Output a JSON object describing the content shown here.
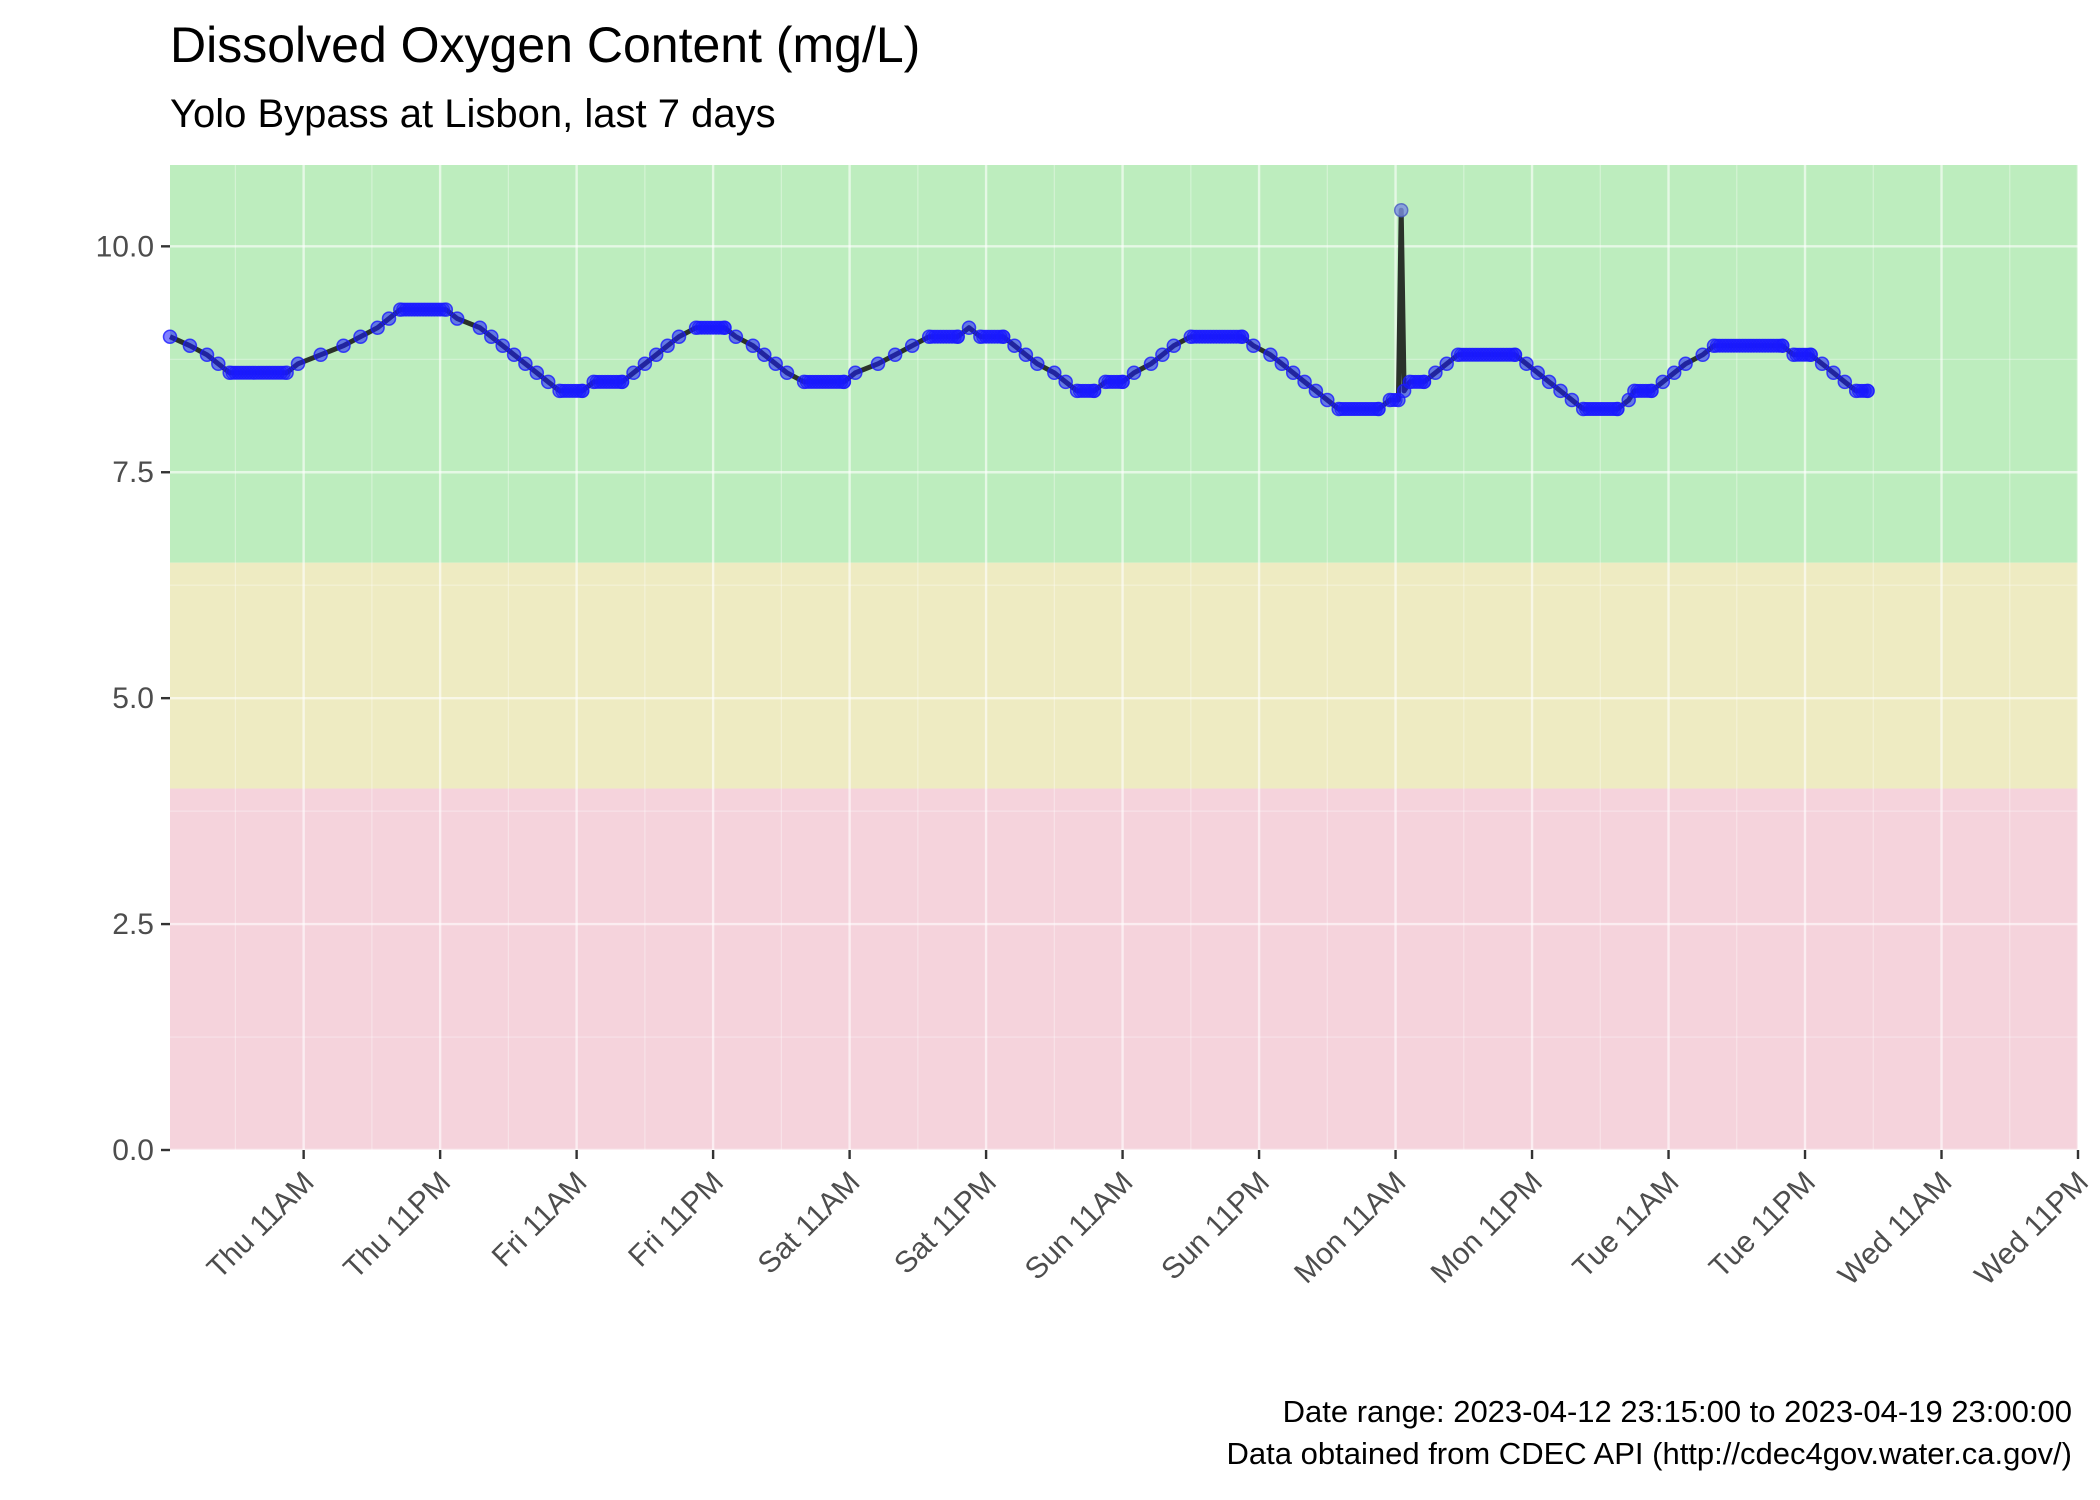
{
  "chart_data": {
    "type": "line",
    "title": "Dissolved Oxygen Content (mg/L)",
    "subtitle": "Yolo Bypass at Lisbon, last 7 days",
    "xlabel": "",
    "ylabel": "",
    "ylim": [
      0,
      10.9
    ],
    "y_ticks": [
      0.0,
      2.5,
      5.0,
      7.5,
      10.0
    ],
    "y_tick_labels": [
      "0.0",
      "2.5",
      "5.0",
      "7.5",
      "10.0"
    ],
    "x_start": "2023-04-12 23:15",
    "x_end": "2023-04-19 23:00",
    "x_axis_range": [
      "2023-04-12 23:15",
      "2023-04-19 23:00"
    ],
    "x_ticks": [
      "2023-04-13 11:00",
      "2023-04-13 23:00",
      "2023-04-14 11:00",
      "2023-04-14 23:00",
      "2023-04-15 11:00",
      "2023-04-15 23:00",
      "2023-04-16 11:00",
      "2023-04-16 23:00",
      "2023-04-17 11:00",
      "2023-04-17 23:00",
      "2023-04-18 11:00",
      "2023-04-18 23:00",
      "2023-04-19 11:00",
      "2023-04-19 23:00"
    ],
    "x_tick_labels": [
      "Thu 11AM",
      "Thu 11PM",
      "Fri 11AM",
      "Fri 11PM",
      "Sat 11AM",
      "Sat 11PM",
      "Sun 11AM",
      "Sun 11PM",
      "Mon 11AM",
      "Mon 11PM",
      "Tue 11AM",
      "Tue 11PM",
      "Wed 11AM",
      "Wed 11PM"
    ],
    "grid": true,
    "bands": [
      {
        "from": 0,
        "to": 4.0,
        "color": "#f5d3dc"
      },
      {
        "from": 4.0,
        "to": 6.5,
        "color": "#eeebc2"
      },
      {
        "from": 6.5,
        "to": 10.9,
        "color": "#bdedbe"
      }
    ],
    "line_color": "#111111",
    "point_color": "#1a1aff",
    "series": [
      {
        "points": [
          [
            "2023-04-12 23:15",
            9.0
          ],
          [
            "2023-04-13 01:00",
            8.9
          ],
          [
            "2023-04-13 02:30",
            8.8
          ],
          [
            "2023-04-13 03:30",
            8.7
          ],
          [
            "2023-04-13 04:30",
            8.6
          ],
          [
            "2023-04-13 09:30",
            8.6
          ],
          [
            "2023-04-13 10:30",
            8.7
          ],
          [
            "2023-04-13 12:30",
            8.8
          ],
          [
            "2023-04-13 14:30",
            8.9
          ],
          [
            "2023-04-13 16:00",
            9.0
          ],
          [
            "2023-04-13 17:30",
            9.1
          ],
          [
            "2023-04-13 18:30",
            9.2
          ],
          [
            "2023-04-13 19:30",
            9.3
          ],
          [
            "2023-04-13 23:30",
            9.3
          ],
          [
            "2023-04-14 00:30",
            9.2
          ],
          [
            "2023-04-14 02:30",
            9.1
          ],
          [
            "2023-04-14 03:30",
            9.0
          ],
          [
            "2023-04-14 04:30",
            8.9
          ],
          [
            "2023-04-14 05:30",
            8.8
          ],
          [
            "2023-04-14 06:30",
            8.7
          ],
          [
            "2023-04-14 07:30",
            8.6
          ],
          [
            "2023-04-14 08:30",
            8.5
          ],
          [
            "2023-04-14 09:30",
            8.4
          ],
          [
            "2023-04-14 11:30",
            8.4
          ],
          [
            "2023-04-14 12:30",
            8.5
          ],
          [
            "2023-04-14 15:00",
            8.5
          ],
          [
            "2023-04-14 16:00",
            8.6
          ],
          [
            "2023-04-14 17:00",
            8.7
          ],
          [
            "2023-04-14 18:00",
            8.8
          ],
          [
            "2023-04-14 19:00",
            8.9
          ],
          [
            "2023-04-14 20:00",
            9.0
          ],
          [
            "2023-04-14 21:30",
            9.1
          ],
          [
            "2023-04-15 00:00",
            9.1
          ],
          [
            "2023-04-15 01:00",
            9.0
          ],
          [
            "2023-04-15 02:30",
            8.9
          ],
          [
            "2023-04-15 03:30",
            8.8
          ],
          [
            "2023-04-15 04:30",
            8.7
          ],
          [
            "2023-04-15 05:30",
            8.6
          ],
          [
            "2023-04-15 07:00",
            8.5
          ],
          [
            "2023-04-15 10:30",
            8.5
          ],
          [
            "2023-04-15 11:30",
            8.6
          ],
          [
            "2023-04-15 13:30",
            8.7
          ],
          [
            "2023-04-15 15:00",
            8.8
          ],
          [
            "2023-04-15 16:30",
            8.9
          ],
          [
            "2023-04-15 18:00",
            9.0
          ],
          [
            "2023-04-15 20:30",
            9.0
          ],
          [
            "2023-04-15 21:30",
            9.1
          ],
          [
            "2023-04-15 22:30",
            9.0
          ],
          [
            "2023-04-16 00:30",
            9.0
          ],
          [
            "2023-04-16 01:30",
            8.9
          ],
          [
            "2023-04-16 02:30",
            8.8
          ],
          [
            "2023-04-16 03:30",
            8.7
          ],
          [
            "2023-04-16 05:00",
            8.6
          ],
          [
            "2023-04-16 06:00",
            8.5
          ],
          [
            "2023-04-16 07:00",
            8.4
          ],
          [
            "2023-04-16 08:30",
            8.4
          ],
          [
            "2023-04-16 09:30",
            8.5
          ],
          [
            "2023-04-16 11:00",
            8.5
          ],
          [
            "2023-04-16 12:00",
            8.6
          ],
          [
            "2023-04-16 13:30",
            8.7
          ],
          [
            "2023-04-16 14:30",
            8.8
          ],
          [
            "2023-04-16 15:30",
            8.9
          ],
          [
            "2023-04-16 17:00",
            9.0
          ],
          [
            "2023-04-16 21:30",
            9.0
          ],
          [
            "2023-04-16 22:30",
            8.9
          ],
          [
            "2023-04-17 00:00",
            8.8
          ],
          [
            "2023-04-17 01:00",
            8.7
          ],
          [
            "2023-04-17 02:00",
            8.6
          ],
          [
            "2023-04-17 03:00",
            8.5
          ],
          [
            "2023-04-17 04:00",
            8.4
          ],
          [
            "2023-04-17 05:00",
            8.3
          ],
          [
            "2023-04-17 06:00",
            8.2
          ],
          [
            "2023-04-17 09:30",
            8.2
          ],
          [
            "2023-04-17 10:30",
            8.3
          ],
          [
            "2023-04-17 11:15",
            8.3
          ],
          [
            "2023-04-17 11:30",
            10.4
          ],
          [
            "2023-04-17 11:45",
            8.4
          ],
          [
            "2023-04-17 12:15",
            8.5
          ],
          [
            "2023-04-17 13:30",
            8.5
          ],
          [
            "2023-04-17 14:30",
            8.6
          ],
          [
            "2023-04-17 15:30",
            8.7
          ],
          [
            "2023-04-17 16:30",
            8.8
          ],
          [
            "2023-04-17 21:30",
            8.8
          ],
          [
            "2023-04-17 22:30",
            8.7
          ],
          [
            "2023-04-17 23:30",
            8.6
          ],
          [
            "2023-04-18 00:30",
            8.5
          ],
          [
            "2023-04-18 01:30",
            8.4
          ],
          [
            "2023-04-18 02:30",
            8.3
          ],
          [
            "2023-04-18 03:30",
            8.2
          ],
          [
            "2023-04-18 06:30",
            8.2
          ],
          [
            "2023-04-18 07:30",
            8.3
          ],
          [
            "2023-04-18 08:00",
            8.4
          ],
          [
            "2023-04-18 09:30",
            8.4
          ],
          [
            "2023-04-18 10:30",
            8.5
          ],
          [
            "2023-04-18 11:30",
            8.6
          ],
          [
            "2023-04-18 12:30",
            8.7
          ],
          [
            "2023-04-18 14:00",
            8.8
          ],
          [
            "2023-04-18 15:00",
            8.9
          ],
          [
            "2023-04-18 21:00",
            8.9
          ],
          [
            "2023-04-18 22:00",
            8.8
          ],
          [
            "2023-04-18 23:30",
            8.8
          ],
          [
            "2023-04-19 00:30",
            8.7
          ],
          [
            "2023-04-19 01:30",
            8.6
          ],
          [
            "2023-04-19 02:30",
            8.5
          ],
          [
            "2023-04-19 03:30",
            8.4
          ],
          [
            "2023-04-19 04:30",
            8.4
          ]
        ]
      }
    ],
    "captions": [
      "Date range: 2023-04-12 23:15:00 to 2023-04-19 23:00:00",
      "Data obtained from CDEC API (http://cdec4gov.water.ca.gov/)"
    ]
  }
}
